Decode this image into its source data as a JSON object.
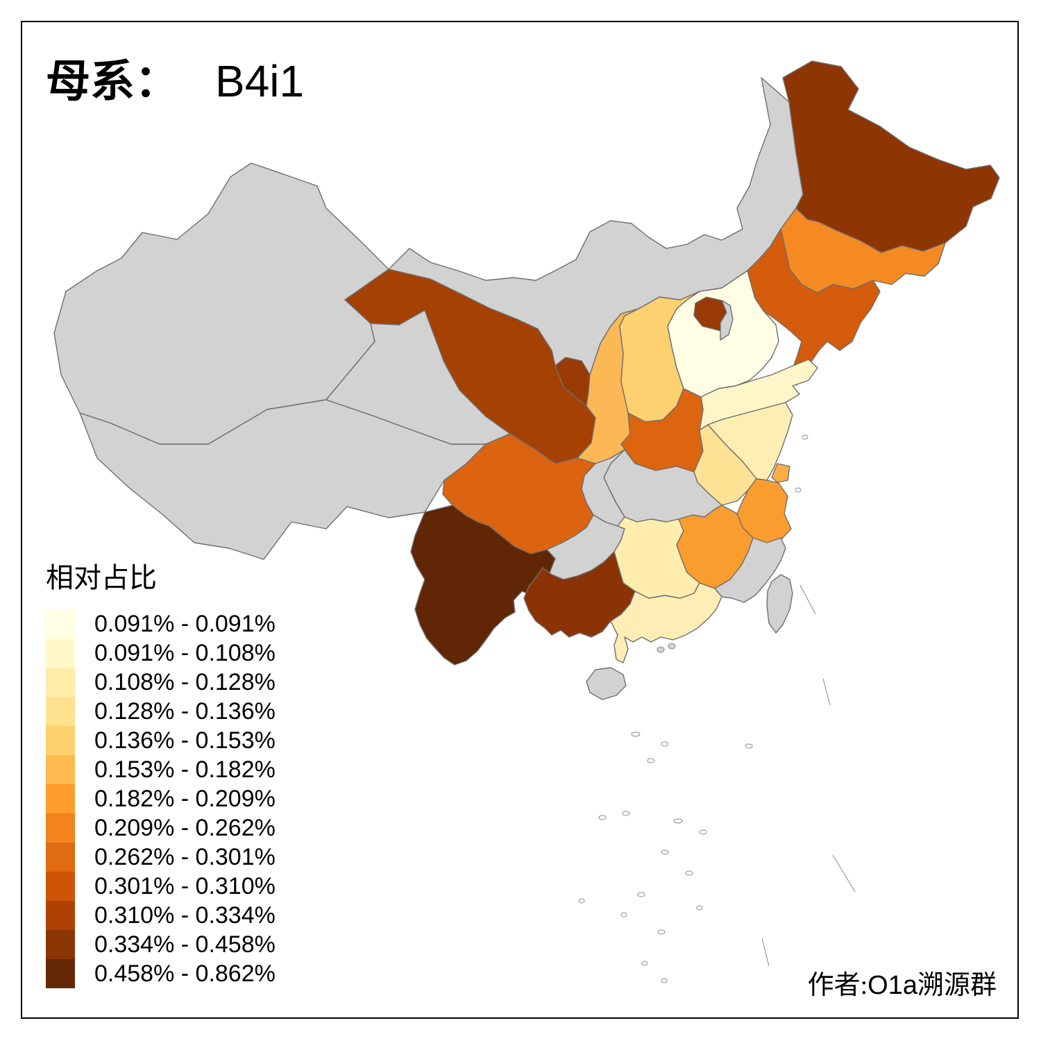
{
  "title": {
    "prefix": "母系：",
    "value": "B4i1"
  },
  "legend": {
    "title": "相对占比",
    "items": [
      {
        "range": "0.091% - 0.091%",
        "color": "#FFFFE5"
      },
      {
        "range": "0.091% - 0.108%",
        "color": "#FFF8C9"
      },
      {
        "range": "0.108% - 0.128%",
        "color": "#FEEDA8"
      },
      {
        "range": "0.128% - 0.136%",
        "color": "#FEE28F"
      },
      {
        "range": "0.136% - 0.153%",
        "color": "#FED16F"
      },
      {
        "range": "0.153% - 0.182%",
        "color": "#FEBB4D"
      },
      {
        "range": "0.182% - 0.209%",
        "color": "#FE9D2C"
      },
      {
        "range": "0.209% - 0.262%",
        "color": "#F2831D"
      },
      {
        "range": "0.262% - 0.301%",
        "color": "#E16B10"
      },
      {
        "range": "0.301% - 0.310%",
        "color": "#CE5407"
      },
      {
        "range": "0.310% - 0.334%",
        "color": "#AE4103"
      },
      {
        "range": "0.334% - 0.458%",
        "color": "#8C3504"
      },
      {
        "range": "0.458% - 0.862%",
        "color": "#652806"
      }
    ]
  },
  "attribution": {
    "prefix": "作者:",
    "group": "O1a",
    "suffix": "溯源群"
  },
  "map": {
    "no_data_color": "#D2D2D2",
    "border_color": "#6E6E6E",
    "provinces": [
      {
        "id": "xinjiang",
        "name": "新疆",
        "fill": "#D2D2D2",
        "range": null
      },
      {
        "id": "xizang",
        "name": "西藏",
        "fill": "#D2D2D2",
        "range": null
      },
      {
        "id": "qinghai",
        "name": "青海",
        "fill": "#D2D2D2",
        "range": null
      },
      {
        "id": "neimenggu",
        "name": "内蒙古",
        "fill": "#D2D2D2",
        "range": null
      },
      {
        "id": "gansu",
        "name": "甘肃",
        "fill": "#A64104",
        "range": "0.310% - 0.334%"
      },
      {
        "id": "ningxia",
        "name": "宁夏",
        "fill": "#9A3A04",
        "range": "0.334% - 0.458%"
      },
      {
        "id": "shaanxi",
        "name": "陕西",
        "fill": "#FCB854",
        "range": "0.153% - 0.182%"
      },
      {
        "id": "shanxi",
        "name": "山西",
        "fill": "#FDD170",
        "range": "0.136% - 0.153%"
      },
      {
        "id": "hebei",
        "name": "河北",
        "fill": "#FFFEE5",
        "range": "0.091% - 0.091%"
      },
      {
        "id": "beijing",
        "name": "北京",
        "fill": "#993904",
        "range": "0.334% - 0.458%"
      },
      {
        "id": "tianjin",
        "name": "天津",
        "fill": "#D2D2D2",
        "range": null
      },
      {
        "id": "heilongjiang",
        "name": "黑龙江",
        "fill": "#8E3504",
        "range": "0.334% - 0.458%"
      },
      {
        "id": "jilin",
        "name": "吉林",
        "fill": "#F68A22",
        "range": "0.209% - 0.262%"
      },
      {
        "id": "liaoning",
        "name": "辽宁",
        "fill": "#D45C0C",
        "range": "0.301% - 0.310%"
      },
      {
        "id": "shandong",
        "name": "山东",
        "fill": "#FDF6C8",
        "range": "0.091% - 0.108%"
      },
      {
        "id": "henan",
        "name": "河南",
        "fill": "#DD650F",
        "range": "0.262% - 0.301%"
      },
      {
        "id": "jiangsu",
        "name": "江苏",
        "fill": "#FDEFB4",
        "range": "0.108% - 0.128%"
      },
      {
        "id": "anhui",
        "name": "安徽",
        "fill": "#FDE294",
        "range": "0.128% - 0.136%"
      },
      {
        "id": "shanghai",
        "name": "上海",
        "fill": "#FBAE47",
        "range": "0.153% - 0.182%"
      },
      {
        "id": "zhejiang",
        "name": "浙江",
        "fill": "#FA9D2E",
        "range": "0.182% - 0.209%"
      },
      {
        "id": "hubei",
        "name": "湖北",
        "fill": "#D2D2D2",
        "range": null
      },
      {
        "id": "chongqing",
        "name": "重庆",
        "fill": "#D2D2D2",
        "range": null
      },
      {
        "id": "sichuan",
        "name": "四川",
        "fill": "#DC6310",
        "range": "0.262% - 0.301%"
      },
      {
        "id": "guizhou",
        "name": "贵州",
        "fill": "#D2D2D2",
        "range": null
      },
      {
        "id": "hunan",
        "name": "湖南",
        "fill": "#FEEDAD",
        "range": "0.108% - 0.128%"
      },
      {
        "id": "jiangxi",
        "name": "江西",
        "fill": "#FA9D30",
        "range": "0.182% - 0.209%"
      },
      {
        "id": "fujian",
        "name": "福建",
        "fill": "#D2D2D2",
        "range": null
      },
      {
        "id": "yunnan",
        "name": "云南",
        "fill": "#602606",
        "range": "0.458% - 0.862%"
      },
      {
        "id": "guangxi",
        "name": "广西",
        "fill": "#8B3304",
        "range": "0.334% - 0.458%"
      },
      {
        "id": "guangdong",
        "name": "广东",
        "fill": "#FEEDB4",
        "range": "0.108% - 0.128%"
      },
      {
        "id": "hainan",
        "name": "海南",
        "fill": "#D2D2D2",
        "range": null
      },
      {
        "id": "taiwan",
        "name": "台湾",
        "fill": "#D2D2D2",
        "range": null
      }
    ]
  },
  "chart_data": {
    "type": "choropleth",
    "title": "母系： B4i1",
    "metric": "相对占比",
    "unit": "%",
    "classes": [
      "0.091% - 0.091%",
      "0.091% - 0.108%",
      "0.108% - 0.128%",
      "0.128% - 0.136%",
      "0.136% - 0.153%",
      "0.153% - 0.182%",
      "0.182% - 0.209%",
      "0.209% - 0.262%",
      "0.262% - 0.301%",
      "0.301% - 0.310%",
      "0.310% - 0.334%",
      "0.334% - 0.458%",
      "0.458% - 0.862%"
    ],
    "province_values": {
      "河北": "0.091% - 0.091%",
      "山东": "0.091% - 0.108%",
      "江苏": "0.108% - 0.128%",
      "湖南": "0.108% - 0.128%",
      "广东": "0.108% - 0.128%",
      "安徽": "0.128% - 0.136%",
      "山西": "0.136% - 0.153%",
      "陕西": "0.153% - 0.182%",
      "上海": "0.153% - 0.182%",
      "浙江": "0.182% - 0.209%",
      "江西": "0.182% - 0.209%",
      "吉林": "0.209% - 0.262%",
      "河南": "0.262% - 0.301%",
      "四川": "0.262% - 0.301%",
      "辽宁": "0.301% - 0.310%",
      "甘肃": "0.310% - 0.334%",
      "宁夏": "0.334% - 0.458%",
      "北京": "0.334% - 0.458%",
      "黑龙江": "0.334% - 0.458%",
      "广西": "0.334% - 0.458%",
      "云南": "0.458% - 0.862%",
      "新疆": null,
      "西藏": null,
      "青海": null,
      "内蒙古": null,
      "天津": null,
      "湖北": null,
      "重庆": null,
      "贵州": null,
      "福建": null,
      "海南": null,
      "台湾": null
    }
  }
}
